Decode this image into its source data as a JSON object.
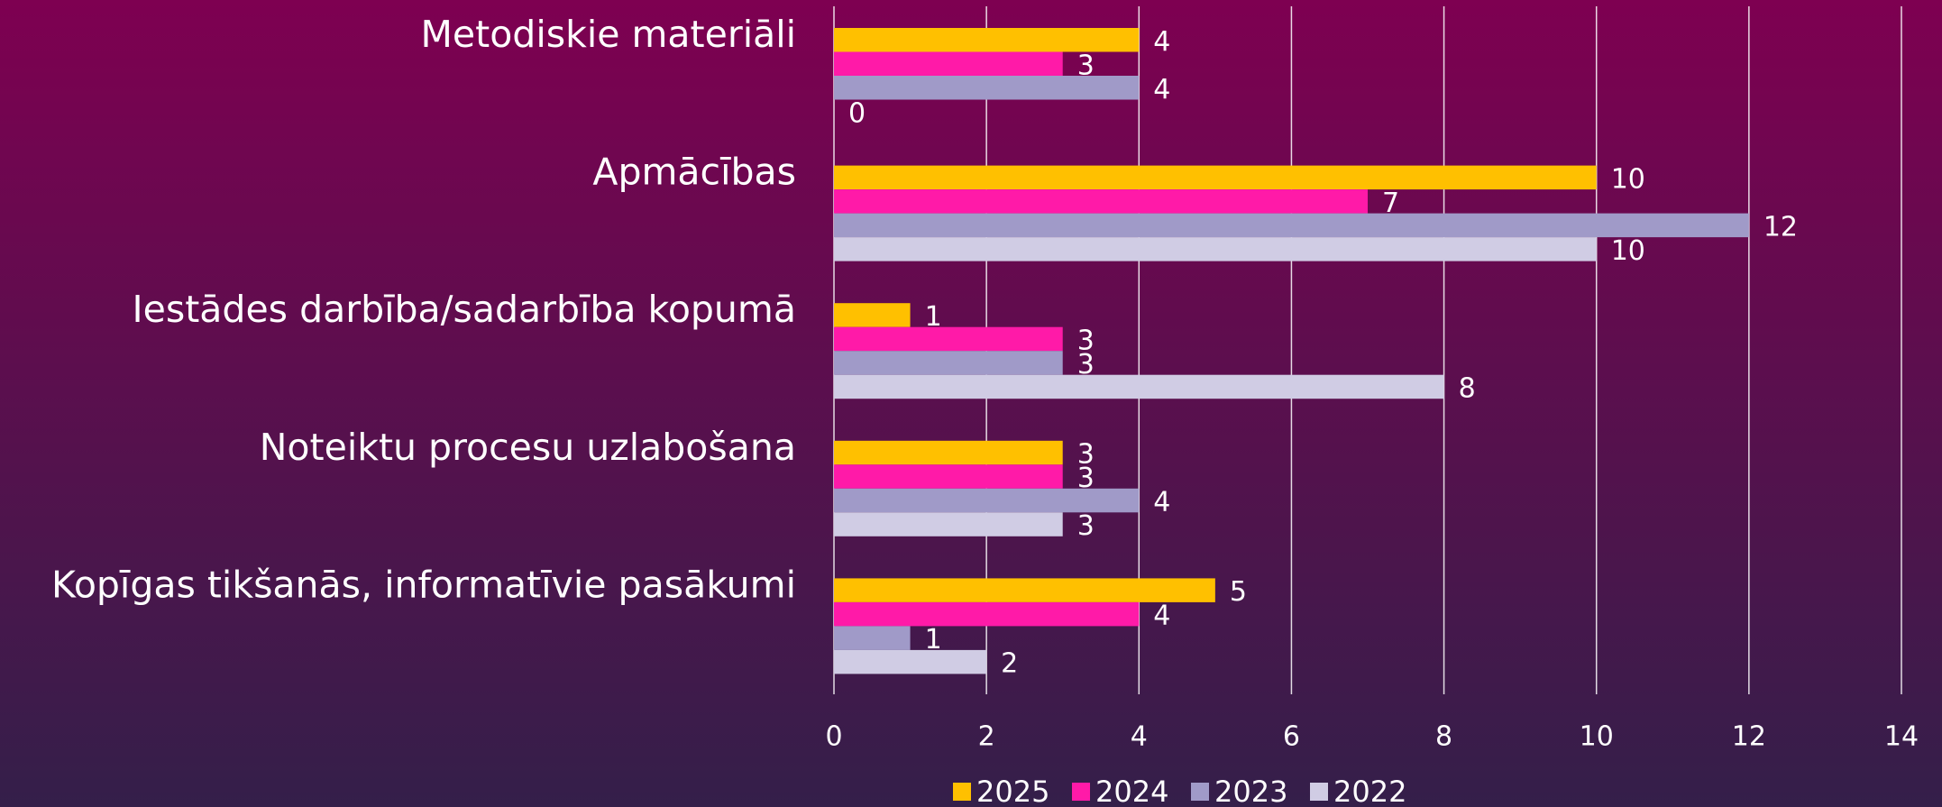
{
  "chart_data": {
    "type": "hbar",
    "categories": [
      "Metodiskie materiāli",
      "Apmācības",
      "Iestādes darbība/sadarbība kopumā",
      "Noteiktu procesu uzlabošana",
      "Kopīgas tikšanās, informatīvie pasākumi"
    ],
    "series": [
      {
        "name": "2025",
        "color": "#ffc000",
        "values": [
          4,
          10,
          1,
          3,
          5
        ]
      },
      {
        "name": "2024",
        "color": "#ff1aa8",
        "values": [
          3,
          7,
          3,
          3,
          4
        ]
      },
      {
        "name": "2023",
        "color": "#a09ac8",
        "values": [
          4,
          12,
          3,
          4,
          1
        ]
      },
      {
        "name": "2022",
        "color": "#d0cce4",
        "values": [
          0,
          10,
          8,
          3,
          2
        ]
      }
    ],
    "xlim": [
      0,
      14
    ],
    "xticks": [
      0,
      2,
      4,
      6,
      8,
      10,
      12,
      14
    ],
    "grid": true,
    "legend": "bottom"
  }
}
